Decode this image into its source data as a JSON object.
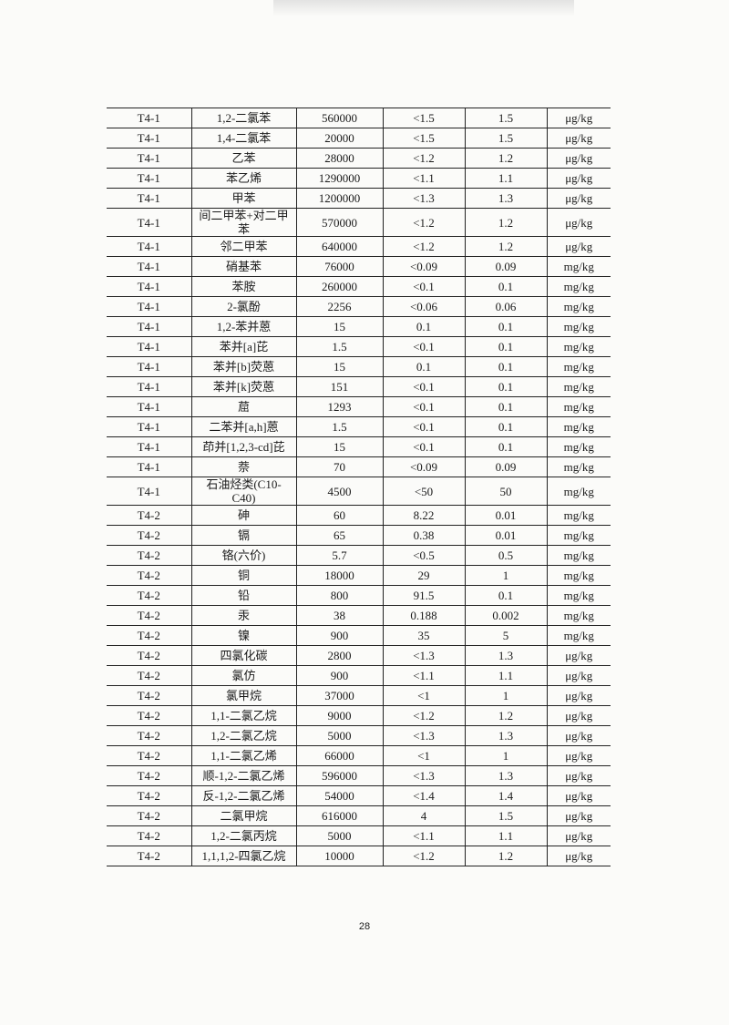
{
  "table": {
    "rows": [
      [
        "T4-1",
        "1,2-二氯苯",
        "560000",
        "<1.5",
        "1.5",
        "μg/kg"
      ],
      [
        "T4-1",
        "1,4-二氯苯",
        "20000",
        "<1.5",
        "1.5",
        "μg/kg"
      ],
      [
        "T4-1",
        "乙苯",
        "28000",
        "<1.2",
        "1.2",
        "μg/kg"
      ],
      [
        "T4-1",
        "苯乙烯",
        "1290000",
        "<1.1",
        "1.1",
        "μg/kg"
      ],
      [
        "T4-1",
        "甲苯",
        "1200000",
        "<1.3",
        "1.3",
        "μg/kg"
      ],
      [
        "T4-1",
        "间二甲苯+对二甲苯",
        "570000",
        "<1.2",
        "1.2",
        "μg/kg"
      ],
      [
        "T4-1",
        "邻二甲苯",
        "640000",
        "<1.2",
        "1.2",
        "μg/kg"
      ],
      [
        "T4-1",
        "硝基苯",
        "76000",
        "<0.09",
        "0.09",
        "mg/kg"
      ],
      [
        "T4-1",
        "苯胺",
        "260000",
        "<0.1",
        "0.1",
        "mg/kg"
      ],
      [
        "T4-1",
        "2-氯酚",
        "2256",
        "<0.06",
        "0.06",
        "mg/kg"
      ],
      [
        "T4-1",
        "1,2-苯并蒽",
        "15",
        "0.1",
        "0.1",
        "mg/kg"
      ],
      [
        "T4-1",
        "苯并[a]芘",
        "1.5",
        "<0.1",
        "0.1",
        "mg/kg"
      ],
      [
        "T4-1",
        "苯并[b]荧蒽",
        "15",
        "0.1",
        "0.1",
        "mg/kg"
      ],
      [
        "T4-1",
        "苯并[k]荧蒽",
        "151",
        "<0.1",
        "0.1",
        "mg/kg"
      ],
      [
        "T4-1",
        "䓛",
        "1293",
        "<0.1",
        "0.1",
        "mg/kg"
      ],
      [
        "T4-1",
        "二苯并[a,h]蒽",
        "1.5",
        "<0.1",
        "0.1",
        "mg/kg"
      ],
      [
        "T4-1",
        "茚并[1,2,3-cd]芘",
        "15",
        "<0.1",
        "0.1",
        "mg/kg"
      ],
      [
        "T4-1",
        "萘",
        "70",
        "<0.09",
        "0.09",
        "mg/kg"
      ],
      [
        "T4-1",
        "石油烃类(C10-C40)",
        "4500",
        "<50",
        "50",
        "mg/kg"
      ],
      [
        "T4-2",
        "砷",
        "60",
        "8.22",
        "0.01",
        "mg/kg"
      ],
      [
        "T4-2",
        "镉",
        "65",
        "0.38",
        "0.01",
        "mg/kg"
      ],
      [
        "T4-2",
        "铬(六价)",
        "5.7",
        "<0.5",
        "0.5",
        "mg/kg"
      ],
      [
        "T4-2",
        "铜",
        "18000",
        "29",
        "1",
        "mg/kg"
      ],
      [
        "T4-2",
        "铅",
        "800",
        "91.5",
        "0.1",
        "mg/kg"
      ],
      [
        "T4-2",
        "汞",
        "38",
        "0.188",
        "0.002",
        "mg/kg"
      ],
      [
        "T4-2",
        "镍",
        "900",
        "35",
        "5",
        "mg/kg"
      ],
      [
        "T4-2",
        "四氯化碳",
        "2800",
        "<1.3",
        "1.3",
        "μg/kg"
      ],
      [
        "T4-2",
        "氯仿",
        "900",
        "<1.1",
        "1.1",
        "μg/kg"
      ],
      [
        "T4-2",
        "氯甲烷",
        "37000",
        "<1",
        "1",
        "μg/kg"
      ],
      [
        "T4-2",
        "1,1-二氯乙烷",
        "9000",
        "<1.2",
        "1.2",
        "μg/kg"
      ],
      [
        "T4-2",
        "1,2-二氯乙烷",
        "5000",
        "<1.3",
        "1.3",
        "μg/kg"
      ],
      [
        "T4-2",
        "1,1-二氯乙烯",
        "66000",
        "<1",
        "1",
        "μg/kg"
      ],
      [
        "T4-2",
        "顺-1,2-二氯乙烯",
        "596000",
        "<1.3",
        "1.3",
        "μg/kg"
      ],
      [
        "T4-2",
        "反-1,2-二氯乙烯",
        "54000",
        "<1.4",
        "1.4",
        "μg/kg"
      ],
      [
        "T4-2",
        "二氯甲烷",
        "616000",
        "4",
        "1.5",
        "μg/kg"
      ],
      [
        "T4-2",
        "1,2-二氯丙烷",
        "5000",
        "<1.1",
        "1.1",
        "μg/kg"
      ],
      [
        "T4-2",
        "1,1,1,2-四氯乙烷",
        "10000",
        "<1.2",
        "1.2",
        "μg/kg"
      ]
    ]
  },
  "page_number": "28"
}
